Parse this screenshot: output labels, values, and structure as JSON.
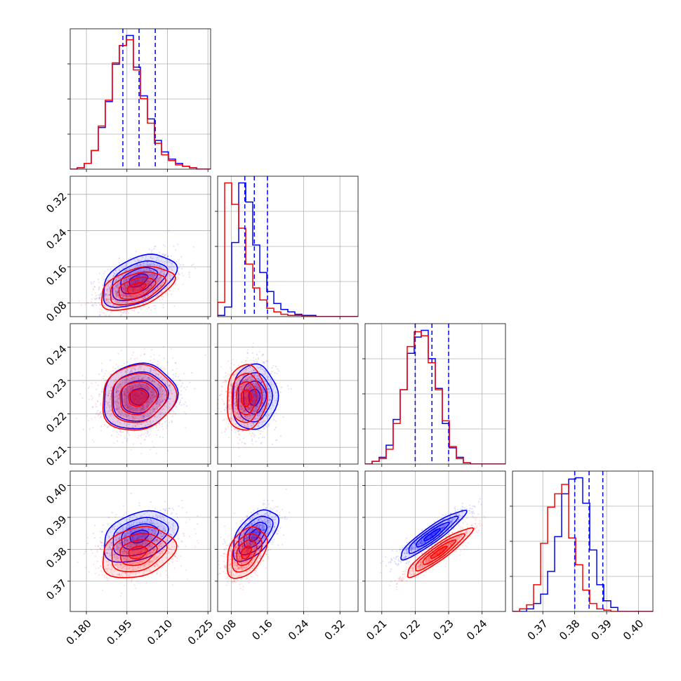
{
  "chart_data": {
    "type": "corner",
    "grid": true,
    "series": [
      {
        "name": "",
        "color": "#0000ff"
      },
      {
        "name": "",
        "color": "#ff0000"
      }
    ],
    "params": [
      {
        "range": [
          0.174,
          0.226
        ],
        "ticks": [
          "0.180",
          "0.195",
          "0.210",
          "0.225"
        ],
        "tick_values": [
          0.18,
          0.195,
          0.21,
          0.225
        ]
      },
      {
        "range": [
          0.05,
          0.36
        ],
        "ticks": [
          "0.08",
          "0.16",
          "0.24",
          "0.32"
        ],
        "tick_values": [
          0.08,
          0.16,
          0.24,
          0.32
        ]
      },
      {
        "range": [
          0.205,
          0.247
        ],
        "ticks": [
          "0.21",
          "0.22",
          "0.23",
          "0.24"
        ],
        "tick_values": [
          0.21,
          0.22,
          0.23,
          0.24
        ]
      },
      {
        "range": [
          0.3605,
          0.4045
        ],
        "ticks": [
          "0.37",
          "0.38",
          "0.39",
          "0.40"
        ],
        "tick_values": [
          0.37,
          0.38,
          0.39,
          0.4
        ]
      }
    ],
    "quantile_lines": [
      [
        0.1935,
        0.1995,
        0.2055
      ],
      [
        0.11,
        0.131,
        0.16
      ],
      [
        0.22,
        0.225,
        0.23
      ],
      [
        0.38,
        0.3845,
        0.3888
      ]
    ],
    "histograms": [
      {
        "edges_range": [
          0.174,
          0.226
        ],
        "bins": 20,
        "blue": [
          0,
          1,
          4,
          13,
          29,
          47,
          73,
          86,
          93,
          71,
          51,
          35,
          20,
          12,
          7,
          4,
          2,
          1,
          0,
          0
        ],
        "red": [
          0,
          1,
          4,
          13,
          30,
          48,
          74,
          86,
          90,
          69,
          49,
          32,
          18,
          10,
          6,
          3,
          2,
          1,
          0,
          0
        ]
      },
      {
        "edges_range": [
          0.05,
          0.36
        ],
        "bins": 20,
        "blue": [
          1,
          8,
          62,
          112,
          96,
          60,
          37,
          21,
          11,
          6,
          4,
          2,
          1,
          1,
          0,
          0,
          0,
          0,
          0,
          0
        ],
        "red": [
          12,
          112,
          94,
          74,
          44,
          24,
          14,
          7,
          4,
          2,
          1,
          1,
          0,
          0,
          0,
          0,
          0,
          0,
          0,
          0
        ]
      },
      {
        "edges_range": [
          0.205,
          0.247
        ],
        "bins": 20,
        "blue": [
          0,
          2,
          5,
          14,
          33,
          55,
          82,
          94,
          99,
          78,
          56,
          30,
          12,
          5,
          1,
          0,
          0,
          0,
          0,
          0
        ],
        "red": [
          0,
          2,
          4,
          11,
          30,
          55,
          87,
          98,
          95,
          75,
          55,
          32,
          13,
          4,
          1,
          0,
          0,
          0,
          0,
          0
        ]
      },
      {
        "edges_range": [
          0.3605,
          0.4045
        ],
        "bins": 20,
        "blue": [
          0,
          0,
          2,
          6,
          13,
          30,
          56,
          88,
          99,
          100,
          81,
          46,
          20,
          8,
          3,
          0,
          0,
          0,
          0,
          0
        ],
        "red": [
          0,
          2,
          5,
          20,
          51,
          78,
          88,
          95,
          55,
          35,
          16,
          6,
          2,
          1,
          0,
          0,
          0,
          0,
          0,
          0
        ]
      }
    ],
    "pairs": [
      {
        "x": 0,
        "y": 1,
        "blue": {
          "mean": [
            0.1992,
            0.13
          ],
          "sd": [
            0.0068,
            0.029
          ],
          "rho": 0.45
        },
        "red": {
          "mean": [
            0.1985,
            0.113
          ],
          "sd": [
            0.0068,
            0.024
          ],
          "rho": 0.45
        }
      },
      {
        "x": 0,
        "y": 2,
        "blue": {
          "mean": [
            0.1995,
            0.2252
          ],
          "sd": [
            0.0068,
            0.0049
          ],
          "rho": 0.1
        },
        "red": {
          "mean": [
            0.199,
            0.2248
          ],
          "sd": [
            0.0068,
            0.0049
          ],
          "rho": 0.1
        }
      },
      {
        "x": 1,
        "y": 2,
        "blue": {
          "mean": [
            0.131,
            0.225
          ],
          "sd": [
            0.025,
            0.0049
          ],
          "rho": 0.05
        },
        "red": {
          "mean": [
            0.113,
            0.2248
          ],
          "sd": [
            0.022,
            0.0049
          ],
          "rho": 0.05
        }
      },
      {
        "x": 0,
        "y": 3,
        "blue": {
          "mean": [
            0.1995,
            0.384
          ],
          "sd": [
            0.0068,
            0.004
          ],
          "rho": 0.35
        },
        "red": {
          "mean": [
            0.199,
            0.379
          ],
          "sd": [
            0.0068,
            0.004
          ],
          "rho": 0.25
        }
      },
      {
        "x": 1,
        "y": 3,
        "blue": {
          "mean": [
            0.132,
            0.3845
          ],
          "sd": [
            0.025,
            0.004
          ],
          "rho": 0.55
        },
        "red": {
          "mean": [
            0.113,
            0.379
          ],
          "sd": [
            0.022,
            0.004
          ],
          "rho": 0.4
        }
      },
      {
        "x": 2,
        "y": 3,
        "blue": {
          "mean": [
            0.225,
            0.3845
          ],
          "sd": [
            0.0049,
            0.0038
          ],
          "rho": 0.92
        },
        "red": {
          "mean": [
            0.227,
            0.379
          ],
          "sd": [
            0.0049,
            0.0038
          ],
          "rho": 0.92
        }
      }
    ]
  }
}
